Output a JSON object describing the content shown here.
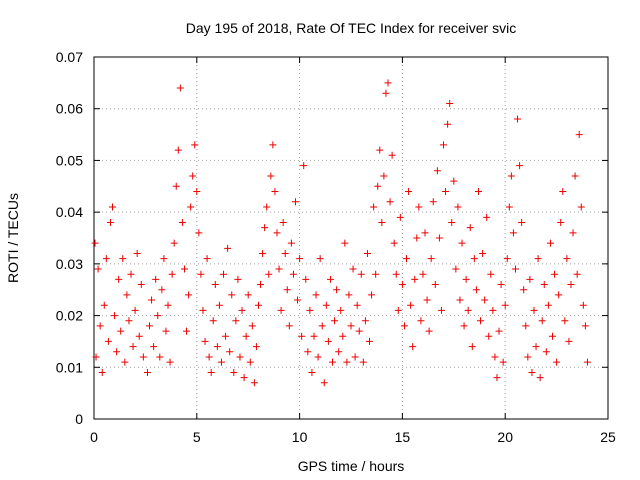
{
  "chart_data": {
    "type": "scatter",
    "title": "Day 195 of 2018, Rate Of TEC Index for receiver svic",
    "xlabel": "GPS time / hours",
    "ylabel": "ROTI / TECUs",
    "xlim": [
      0,
      25
    ],
    "ylim": [
      0,
      0.07
    ],
    "xticks": [
      0,
      5,
      10,
      15,
      20,
      25
    ],
    "yticks": [
      0,
      0.01,
      0.02,
      0.03,
      0.04,
      0.05,
      0.06,
      0.07
    ],
    "xtick_labels": [
      "0",
      "5",
      "10",
      "15",
      "20",
      "25"
    ],
    "ytick_labels": [
      "0",
      "0.01",
      "0.02",
      "0.03",
      "0.04",
      "0.05",
      "0.06",
      "0.07"
    ],
    "grid": true,
    "marker": "+",
    "marker_color": "#ee0000",
    "series": [
      {
        "name": "ROTI",
        "points": [
          [
            0.05,
            0.034
          ],
          [
            0.1,
            0.012
          ],
          [
            0.2,
            0.029
          ],
          [
            0.3,
            0.018
          ],
          [
            0.4,
            0.009
          ],
          [
            0.5,
            0.022
          ],
          [
            0.6,
            0.031
          ],
          [
            0.7,
            0.015
          ],
          [
            0.8,
            0.038
          ],
          [
            0.9,
            0.041
          ],
          [
            1.0,
            0.02
          ],
          [
            1.1,
            0.013
          ],
          [
            1.2,
            0.027
          ],
          [
            1.3,
            0.017
          ],
          [
            1.4,
            0.031
          ],
          [
            1.5,
            0.011
          ],
          [
            1.6,
            0.024
          ],
          [
            1.7,
            0.019
          ],
          [
            1.8,
            0.028
          ],
          [
            1.9,
            0.014
          ],
          [
            2.0,
            0.021
          ],
          [
            2.1,
            0.032
          ],
          [
            2.2,
            0.016
          ],
          [
            2.3,
            0.026
          ],
          [
            2.4,
            0.012
          ],
          [
            2.6,
            0.009
          ],
          [
            2.7,
            0.018
          ],
          [
            2.8,
            0.023
          ],
          [
            2.9,
            0.014
          ],
          [
            3.0,
            0.027
          ],
          [
            3.1,
            0.02
          ],
          [
            3.2,
            0.012
          ],
          [
            3.3,
            0.025
          ],
          [
            3.4,
            0.031
          ],
          [
            3.5,
            0.017
          ],
          [
            3.6,
            0.022
          ],
          [
            3.7,
            0.011
          ],
          [
            3.8,
            0.028
          ],
          [
            3.9,
            0.034
          ],
          [
            4.0,
            0.045
          ],
          [
            4.1,
            0.052
          ],
          [
            4.2,
            0.064
          ],
          [
            4.3,
            0.038
          ],
          [
            4.4,
            0.029
          ],
          [
            4.5,
            0.017
          ],
          [
            4.6,
            0.024
          ],
          [
            4.7,
            0.041
          ],
          [
            4.8,
            0.047
          ],
          [
            4.9,
            0.053
          ],
          [
            5.0,
            0.044
          ],
          [
            5.1,
            0.036
          ],
          [
            5.2,
            0.028
          ],
          [
            5.3,
            0.021
          ],
          [
            5.4,
            0.015
          ],
          [
            5.5,
            0.031
          ],
          [
            5.6,
            0.012
          ],
          [
            5.7,
            0.009
          ],
          [
            5.8,
            0.019
          ],
          [
            5.9,
            0.026
          ],
          [
            6.0,
            0.014
          ],
          [
            6.1,
            0.022
          ],
          [
            6.2,
            0.011
          ],
          [
            6.3,
            0.028
          ],
          [
            6.4,
            0.016
          ],
          [
            6.5,
            0.033
          ],
          [
            6.6,
            0.013
          ],
          [
            6.7,
            0.024
          ],
          [
            6.8,
            0.009
          ],
          [
            6.9,
            0.019
          ],
          [
            7.0,
            0.027
          ],
          [
            7.1,
            0.012
          ],
          [
            7.2,
            0.021
          ],
          [
            7.3,
            0.008
          ],
          [
            7.4,
            0.016
          ],
          [
            7.5,
            0.024
          ],
          [
            7.6,
            0.011
          ],
          [
            7.7,
            0.018
          ],
          [
            7.8,
            0.007
          ],
          [
            7.9,
            0.014
          ],
          [
            8.0,
            0.022
          ],
          [
            8.1,
            0.026
          ],
          [
            8.2,
            0.032
          ],
          [
            8.3,
            0.037
          ],
          [
            8.4,
            0.041
          ],
          [
            8.5,
            0.028
          ],
          [
            8.6,
            0.047
          ],
          [
            8.7,
            0.053
          ],
          [
            8.8,
            0.044
          ],
          [
            8.9,
            0.036
          ],
          [
            9.0,
            0.029
          ],
          [
            9.1,
            0.021
          ],
          [
            9.2,
            0.038
          ],
          [
            9.3,
            0.032
          ],
          [
            9.4,
            0.025
          ],
          [
            9.5,
            0.018
          ],
          [
            9.6,
            0.034
          ],
          [
            9.7,
            0.028
          ],
          [
            9.8,
            0.042
          ],
          [
            9.9,
            0.023
          ],
          [
            10.0,
            0.031
          ],
          [
            10.1,
            0.016
          ],
          [
            10.2,
            0.049
          ],
          [
            10.3,
            0.027
          ],
          [
            10.4,
            0.013
          ],
          [
            10.5,
            0.021
          ],
          [
            10.6,
            0.009
          ],
          [
            10.7,
            0.016
          ],
          [
            10.8,
            0.024
          ],
          [
            10.9,
            0.012
          ],
          [
            11.0,
            0.031
          ],
          [
            11.1,
            0.018
          ],
          [
            11.2,
            0.007
          ],
          [
            11.3,
            0.022
          ],
          [
            11.4,
            0.015
          ],
          [
            11.5,
            0.027
          ],
          [
            11.6,
            0.011
          ],
          [
            11.7,
            0.019
          ],
          [
            11.8,
            0.025
          ],
          [
            11.9,
            0.013
          ],
          [
            12.0,
            0.021
          ],
          [
            12.1,
            0.016
          ],
          [
            12.2,
            0.034
          ],
          [
            12.3,
            0.011
          ],
          [
            12.4,
            0.024
          ],
          [
            12.5,
            0.018
          ],
          [
            12.6,
            0.029
          ],
          [
            12.7,
            0.012
          ],
          [
            12.8,
            0.022
          ],
          [
            12.9,
            0.017
          ],
          [
            13.0,
            0.028
          ],
          [
            13.1,
            0.011
          ],
          [
            13.2,
            0.019
          ],
          [
            13.3,
            0.032
          ],
          [
            13.4,
            0.015
          ],
          [
            13.5,
            0.024
          ],
          [
            13.6,
            0.041
          ],
          [
            13.7,
            0.028
          ],
          [
            13.8,
            0.045
          ],
          [
            13.9,
            0.052
          ],
          [
            14.0,
            0.038
          ],
          [
            14.1,
            0.047
          ],
          [
            14.2,
            0.063
          ],
          [
            14.3,
            0.065
          ],
          [
            14.4,
            0.042
          ],
          [
            14.5,
            0.051
          ],
          [
            14.6,
            0.034
          ],
          [
            14.7,
            0.028
          ],
          [
            14.8,
            0.021
          ],
          [
            14.9,
            0.039
          ],
          [
            15.0,
            0.026
          ],
          [
            15.1,
            0.018
          ],
          [
            15.2,
            0.031
          ],
          [
            15.3,
            0.044
          ],
          [
            15.4,
            0.022
          ],
          [
            15.5,
            0.014
          ],
          [
            15.6,
            0.027
          ],
          [
            15.7,
            0.035
          ],
          [
            15.8,
            0.041
          ],
          [
            15.9,
            0.019
          ],
          [
            16.0,
            0.028
          ],
          [
            16.1,
            0.036
          ],
          [
            16.2,
            0.023
          ],
          [
            16.3,
            0.017
          ],
          [
            16.4,
            0.031
          ],
          [
            16.5,
            0.042
          ],
          [
            16.6,
            0.026
          ],
          [
            16.7,
            0.048
          ],
          [
            16.8,
            0.035
          ],
          [
            16.9,
            0.021
          ],
          [
            17.0,
            0.053
          ],
          [
            17.1,
            0.044
          ],
          [
            17.2,
            0.057
          ],
          [
            17.3,
            0.061
          ],
          [
            17.4,
            0.038
          ],
          [
            17.5,
            0.046
          ],
          [
            17.6,
            0.029
          ],
          [
            17.7,
            0.041
          ],
          [
            17.8,
            0.023
          ],
          [
            17.9,
            0.034
          ],
          [
            18.0,
            0.018
          ],
          [
            18.1,
            0.027
          ],
          [
            18.2,
            0.021
          ],
          [
            18.3,
            0.037
          ],
          [
            18.4,
            0.014
          ],
          [
            18.5,
            0.031
          ],
          [
            18.6,
            0.025
          ],
          [
            18.7,
            0.044
          ],
          [
            18.8,
            0.019
          ],
          [
            18.9,
            0.032
          ],
          [
            19.0,
            0.023
          ],
          [
            19.1,
            0.039
          ],
          [
            19.2,
            0.016
          ],
          [
            19.3,
            0.028
          ],
          [
            19.4,
            0.021
          ],
          [
            19.5,
            0.012
          ],
          [
            19.6,
            0.008
          ],
          [
            19.7,
            0.017
          ],
          [
            19.8,
            0.026
          ],
          [
            19.9,
            0.011
          ],
          [
            20.0,
            0.022
          ],
          [
            20.1,
            0.031
          ],
          [
            20.2,
            0.041
          ],
          [
            20.3,
            0.047
          ],
          [
            20.4,
            0.036
          ],
          [
            20.5,
            0.029
          ],
          [
            20.6,
            0.058
          ],
          [
            20.7,
            0.049
          ],
          [
            20.8,
            0.038
          ],
          [
            20.9,
            0.025
          ],
          [
            21.0,
            0.018
          ],
          [
            21.1,
            0.012
          ],
          [
            21.2,
            0.027
          ],
          [
            21.3,
            0.009
          ],
          [
            21.4,
            0.021
          ],
          [
            21.5,
            0.014
          ],
          [
            21.6,
            0.031
          ],
          [
            21.7,
            0.008
          ],
          [
            21.8,
            0.019
          ],
          [
            21.9,
            0.026
          ],
          [
            22.0,
            0.013
          ],
          [
            22.1,
            0.022
          ],
          [
            22.2,
            0.034
          ],
          [
            22.3,
            0.016
          ],
          [
            22.4,
            0.028
          ],
          [
            22.5,
            0.011
          ],
          [
            22.6,
            0.024
          ],
          [
            22.7,
            0.038
          ],
          [
            22.8,
            0.044
          ],
          [
            22.9,
            0.019
          ],
          [
            23.0,
            0.031
          ],
          [
            23.1,
            0.015
          ],
          [
            23.2,
            0.026
          ],
          [
            23.3,
            0.036
          ],
          [
            23.4,
            0.047
          ],
          [
            23.5,
            0.028
          ],
          [
            23.6,
            0.055
          ],
          [
            23.7,
            0.041
          ],
          [
            23.8,
            0.022
          ],
          [
            23.9,
            0.018
          ],
          [
            24.0,
            0.011
          ]
        ]
      }
    ]
  }
}
